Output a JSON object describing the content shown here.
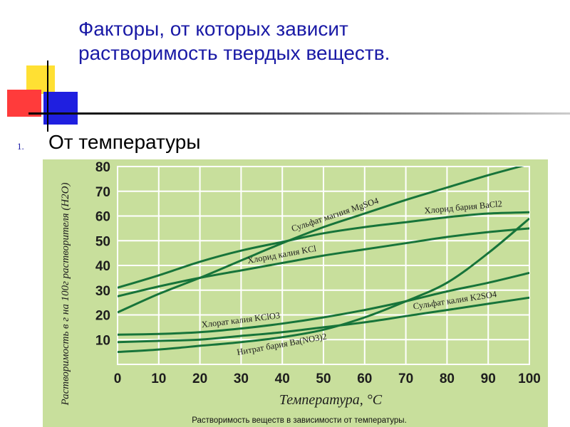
{
  "slide": {
    "title_line1": "Факторы, от которых зависит",
    "title_line2": "растворимость твердых веществ.",
    "list_number": "1.",
    "list_item": "От температуры"
  },
  "colors": {
    "chart_bg": "#c8df9c",
    "curve": "#17743a",
    "grid": "#ffffff",
    "title": "#1a1aa6"
  },
  "chart_data": {
    "type": "line",
    "xlabel": "Температура, °С",
    "ylabel": "Растворимость в г на 100г растворителя (H2O)",
    "caption": "Растворимость веществ в зависимости от температуры.",
    "xlim": [
      0,
      100
    ],
    "ylim": [
      0,
      80
    ],
    "x_ticks": [
      "0",
      "10",
      "20",
      "30",
      "40",
      "50",
      "60",
      "70",
      "80",
      "90",
      "100"
    ],
    "y_ticks": [
      "0",
      "10",
      "20",
      "30",
      "40",
      "50",
      "60",
      "70",
      "80"
    ],
    "grid": true,
    "x": [
      0,
      10,
      20,
      30,
      40,
      50,
      60,
      70,
      80,
      90,
      100
    ],
    "series": [
      {
        "name": "Сульфат магния MgSO4",
        "values": [
          21,
          28.5,
          35,
          42,
          49,
          55.5,
          61,
          66.5,
          71.5,
          76.5,
          81
        ]
      },
      {
        "name": "Хлорид бария BaCl2",
        "values": [
          31,
          36,
          41.5,
          46,
          49.5,
          53,
          55.5,
          57.5,
          59.5,
          61,
          61.5
        ]
      },
      {
        "name": "Хлорид калия KCl",
        "values": [
          27.5,
          31.5,
          35,
          38,
          41,
          44,
          46.5,
          49,
          51.5,
          53.5,
          55
        ]
      },
      {
        "name": "Хлорат калия KClO3",
        "values": [
          12,
          12.3,
          13,
          14.5,
          16.5,
          19,
          22,
          25.5,
          29.5,
          33,
          37
        ]
      },
      {
        "name": "Сульфат калия K2SO4",
        "values": [
          9,
          9.5,
          10,
          11.5,
          13,
          15,
          17,
          19.5,
          22,
          24.5,
          27
        ]
      },
      {
        "name": "Нитрат бария Ba(NO3)2",
        "values": [
          5,
          6,
          7.5,
          9,
          11,
          14,
          19,
          25.5,
          33,
          45,
          59
        ]
      }
    ],
    "curve_labels": [
      {
        "text": "Сульфат магния MgSO4",
        "series": 0
      },
      {
        "text": "Хлорид бария BaCl2",
        "series": 1
      },
      {
        "text": "Хлорид калия KCl",
        "series": 2
      },
      {
        "text": "Хлорат калия KClO3",
        "series": 3
      },
      {
        "text": "Сульфат калия K2SO4",
        "series": 4
      },
      {
        "text": "Нитрат бария Ba(NO3)2",
        "series": 5
      }
    ]
  }
}
